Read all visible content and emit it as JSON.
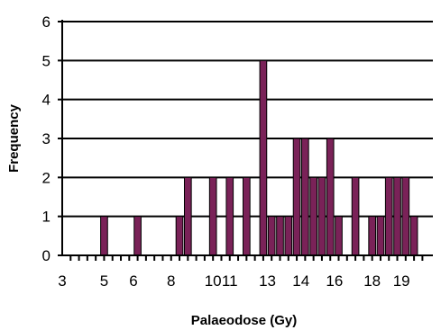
{
  "chart_data": {
    "type": "bar",
    "xlabel": "Palaeodose (Gy)",
    "ylabel": "Frequency",
    "ylim": [
      0,
      6
    ],
    "yticks": [
      0,
      1,
      2,
      3,
      4,
      5,
      6
    ],
    "xlim": [
      3,
      20.7
    ],
    "xticks": [
      3,
      5,
      6,
      8,
      10,
      11,
      13,
      14,
      16,
      18,
      19
    ],
    "x_minor_ticks": [
      3.4,
      3.8,
      4.2,
      4.6,
      5.0,
      5.4,
      5.8,
      6.2,
      6.6,
      7.0,
      7.4,
      7.8,
      8.2,
      8.6,
      9.0,
      9.4,
      9.8,
      10.2,
      10.6,
      11.0,
      11.4,
      11.8,
      12.2,
      12.6,
      13.0,
      13.4,
      13.8,
      14.2,
      14.6,
      15.0,
      15.4,
      15.8,
      16.2,
      16.6,
      17.0,
      17.4,
      17.8,
      18.2,
      18.6,
      19.0,
      19.4,
      19.8,
      20.2
    ],
    "grid": true,
    "bar_width": 0.33,
    "bar_color": "#7a2258",
    "bars": [
      {
        "x": 5.0,
        "value": 1
      },
      {
        "x": 6.6,
        "value": 1
      },
      {
        "x": 8.6,
        "value": 1
      },
      {
        "x": 9.0,
        "value": 2
      },
      {
        "x": 10.2,
        "value": 2
      },
      {
        "x": 11.0,
        "value": 2
      },
      {
        "x": 11.8,
        "value": 2
      },
      {
        "x": 12.6,
        "value": 5
      },
      {
        "x": 13.0,
        "value": 1
      },
      {
        "x": 13.4,
        "value": 1
      },
      {
        "x": 13.8,
        "value": 1
      },
      {
        "x": 14.2,
        "value": 3
      },
      {
        "x": 14.6,
        "value": 3
      },
      {
        "x": 15.0,
        "value": 2
      },
      {
        "x": 15.4,
        "value": 2
      },
      {
        "x": 15.8,
        "value": 3
      },
      {
        "x": 16.2,
        "value": 1
      },
      {
        "x": 17.0,
        "value": 2
      },
      {
        "x": 17.8,
        "value": 1
      },
      {
        "x": 18.2,
        "value": 1
      },
      {
        "x": 18.6,
        "value": 2
      },
      {
        "x": 19.0,
        "value": 2
      },
      {
        "x": 19.4,
        "value": 2
      },
      {
        "x": 19.8,
        "value": 1
      }
    ]
  }
}
